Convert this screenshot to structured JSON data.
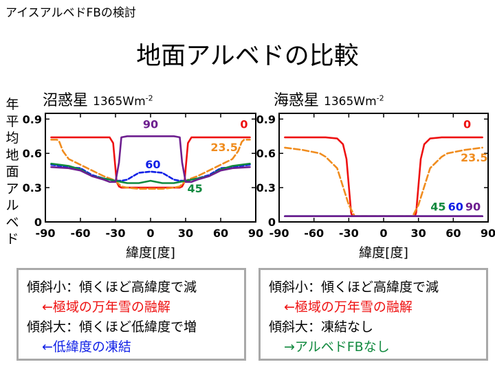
{
  "header": "アイスアルベドFBの検討",
  "title": "地面アルベドの比較",
  "ylabel": "年平均地面アルベド",
  "left_panel": {
    "title": "沼惑星",
    "flux": "1365Wm",
    "flux_sup": "-2"
  },
  "right_panel": {
    "title": "海惑星",
    "flux": "1365Wm",
    "flux_sup": "-2"
  },
  "colors": {
    "red": "#ee1111",
    "orange": "#f08c1e",
    "blue": "#0f1fe6",
    "green": "#10893e",
    "purple": "#6d1f8f",
    "box_border": "#a9a9a9"
  },
  "chart_data": [
    {
      "type": "line",
      "xlabel": "緯度[度]",
      "ylabel": "年平均地面アルベド",
      "xlim": [
        -90,
        90
      ],
      "ylim": [
        0,
        0.95
      ],
      "xticks": [
        "-90",
        "-60",
        "-30",
        "0",
        "30",
        "60",
        "90"
      ],
      "yticks": [
        "0",
        "0.3",
        "0.6",
        "0.9"
      ],
      "series": [
        {
          "name": "0",
          "color": "#ee1111",
          "dash": "",
          "x": [
            -85,
            -80,
            -70,
            -60,
            -50,
            -40,
            -35,
            -32,
            -29,
            -27,
            -25,
            -20,
            -10,
            0,
            10,
            20,
            25,
            27,
            29,
            32,
            35,
            40,
            50,
            60,
            70,
            80,
            85
          ],
          "y": [
            0.74,
            0.74,
            0.74,
            0.74,
            0.74,
            0.74,
            0.74,
            0.69,
            0.35,
            0.31,
            0.3,
            0.3,
            0.3,
            0.3,
            0.3,
            0.3,
            0.3,
            0.31,
            0.35,
            0.69,
            0.74,
            0.74,
            0.74,
            0.74,
            0.74,
            0.74,
            0.74
          ]
        },
        {
          "name": "23.5",
          "color": "#f08c1e",
          "dash": "9 4",
          "x": [
            -85,
            -80,
            -78,
            -75,
            -70,
            -60,
            -50,
            -40,
            -32,
            -28,
            -25,
            -20,
            -10,
            0,
            10,
            20,
            25,
            28,
            32,
            40,
            50,
            60,
            70,
            75,
            78,
            80,
            85
          ],
          "y": [
            0.72,
            0.72,
            0.7,
            0.62,
            0.55,
            0.5,
            0.45,
            0.4,
            0.37,
            0.34,
            0.31,
            0.3,
            0.29,
            0.29,
            0.29,
            0.3,
            0.31,
            0.34,
            0.37,
            0.4,
            0.45,
            0.5,
            0.55,
            0.62,
            0.7,
            0.72,
            0.72
          ]
        },
        {
          "name": "60",
          "color": "#0f1fe6",
          "dash": "6 3",
          "x": [
            -85,
            -70,
            -60,
            -50,
            -40,
            -30,
            -25,
            -20,
            -15,
            -10,
            0,
            10,
            15,
            20,
            25,
            30,
            40,
            50,
            60,
            70,
            85
          ],
          "y": [
            0.5,
            0.48,
            0.47,
            0.41,
            0.38,
            0.36,
            0.36,
            0.37,
            0.4,
            0.43,
            0.44,
            0.43,
            0.4,
            0.37,
            0.36,
            0.36,
            0.38,
            0.41,
            0.47,
            0.48,
            0.5
          ]
        },
        {
          "name": "45",
          "color": "#10893e",
          "dash": "",
          "x": [
            -85,
            -70,
            -60,
            -50,
            -40,
            -30,
            -25,
            -20,
            -10,
            0,
            10,
            20,
            25,
            30,
            40,
            50,
            60,
            70,
            85
          ],
          "y": [
            0.51,
            0.49,
            0.46,
            0.4,
            0.38,
            0.36,
            0.35,
            0.34,
            0.34,
            0.36,
            0.34,
            0.34,
            0.35,
            0.36,
            0.38,
            0.4,
            0.46,
            0.49,
            0.51
          ]
        },
        {
          "name": "90",
          "color": "#6d1f8f",
          "dash": "",
          "x": [
            -85,
            -70,
            -60,
            -50,
            -40,
            -35,
            -30,
            -27,
            -25,
            -20,
            -10,
            0,
            10,
            20,
            25,
            27,
            30,
            35,
            40,
            50,
            60,
            70,
            85
          ],
          "y": [
            0.48,
            0.47,
            0.45,
            0.4,
            0.37,
            0.35,
            0.35,
            0.52,
            0.74,
            0.75,
            0.75,
            0.75,
            0.75,
            0.75,
            0.74,
            0.52,
            0.35,
            0.35,
            0.37,
            0.4,
            0.45,
            0.47,
            0.48
          ]
        }
      ],
      "labels": [
        {
          "text": "90",
          "color": "#6d1f8f",
          "x": 0,
          "y": 0.82
        },
        {
          "text": "0",
          "color": "#ee1111",
          "x": 80,
          "y": 0.82
        },
        {
          "text": "23.5",
          "color": "#f08c1e",
          "x": 63,
          "y": 0.62
        },
        {
          "text": "60",
          "color": "#0f1fe6",
          "x": 2,
          "y": 0.47
        },
        {
          "text": "45",
          "color": "#10893e",
          "x": 38,
          "y": 0.26
        }
      ]
    },
    {
      "type": "line",
      "xlabel": "緯度[度]",
      "ylabel": "",
      "xlim": [
        -90,
        90
      ],
      "ylim": [
        0,
        0.95
      ],
      "xticks": [
        "-90",
        "-60",
        "-30",
        "0",
        "30",
        "60",
        "90"
      ],
      "yticks": [
        "0",
        "0.3",
        "0.6",
        "0.9"
      ],
      "series": [
        {
          "name": "0",
          "color": "#ee1111",
          "dash": "",
          "x": [
            -85,
            -70,
            -60,
            -50,
            -40,
            -35,
            -32,
            -30,
            -28,
            -27,
            -25,
            0,
            25,
            27,
            28,
            30,
            32,
            35,
            40,
            50,
            60,
            70,
            85
          ],
          "y": [
            0.74,
            0.74,
            0.74,
            0.74,
            0.73,
            0.68,
            0.55,
            0.32,
            0.08,
            0.05,
            0.05,
            0.05,
            0.05,
            0.05,
            0.08,
            0.32,
            0.55,
            0.68,
            0.73,
            0.74,
            0.74,
            0.74,
            0.74
          ]
        },
        {
          "name": "23.5",
          "color": "#f08c1e",
          "dash": "9 4",
          "x": [
            -85,
            -70,
            -60,
            -55,
            -50,
            -40,
            -30,
            -25,
            -24,
            0,
            24,
            25,
            30,
            40,
            50,
            55,
            60,
            70,
            85
          ],
          "y": [
            0.65,
            0.63,
            0.61,
            0.6,
            0.57,
            0.47,
            0.15,
            0.05,
            0.05,
            0.05,
            0.05,
            0.05,
            0.15,
            0.47,
            0.57,
            0.6,
            0.61,
            0.63,
            0.65
          ]
        },
        {
          "name": "45",
          "color": "#10893e",
          "dash": "",
          "x": [
            -85,
            85
          ],
          "y": [
            0.05,
            0.05
          ]
        },
        {
          "name": "60",
          "color": "#0f1fe6",
          "dash": "",
          "x": [
            -85,
            85
          ],
          "y": [
            0.05,
            0.05
          ]
        },
        {
          "name": "90",
          "color": "#6d1f8f",
          "dash": "",
          "x": [
            -85,
            85
          ],
          "y": [
            0.05,
            0.05
          ]
        }
      ],
      "labels": [
        {
          "text": "0",
          "color": "#ee1111",
          "x": 72,
          "y": 0.82
        },
        {
          "text": "23.5",
          "color": "#f08c1e",
          "x": 78,
          "y": 0.53
        },
        {
          "text": "45",
          "color": "#10893e",
          "x": 47,
          "y": 0.1
        },
        {
          "text": "60",
          "color": "#0f1fe6",
          "x": 62,
          "y": 0.1
        },
        {
          "text": "90",
          "color": "#6d1f8f",
          "x": 77,
          "y": 0.1
        }
      ]
    }
  ],
  "left_box": {
    "line1": "傾斜小：傾くほど高緯度で減",
    "line2": "←極域の万年雪の融解",
    "line3": "傾斜大：傾くほど低緯度で増",
    "line4": "←低緯度の凍結"
  },
  "right_box": {
    "line1": "傾斜小：傾くほど高緯度で減",
    "line2": "←極域の万年雪の融解",
    "line3": "傾斜大：凍結なし",
    "line4": "→アルベドFBなし"
  }
}
